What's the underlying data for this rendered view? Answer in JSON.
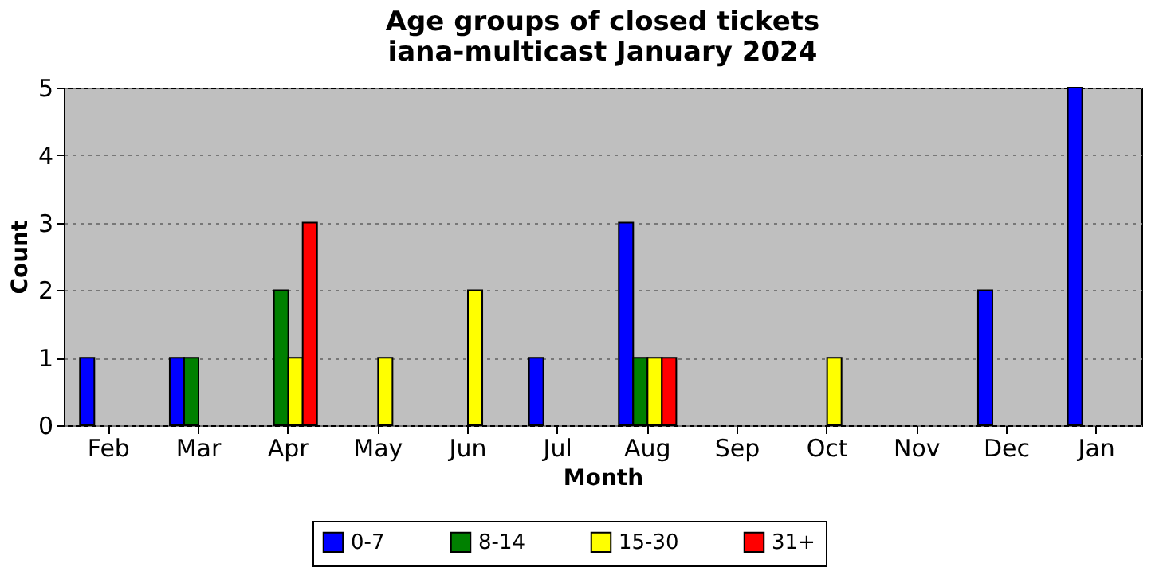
{
  "chart_data": {
    "type": "bar",
    "title": "Age groups of closed tickets",
    "subtitle": "iana-multicast January 2024",
    "xlabel": "Month",
    "ylabel": "Count",
    "categories": [
      "Feb",
      "Mar",
      "Apr",
      "May",
      "Jun",
      "Jul",
      "Aug",
      "Sep",
      "Oct",
      "Nov",
      "Dec",
      "Jan"
    ],
    "series": [
      {
        "name": "0-7",
        "color": "#0000ff",
        "values": [
          1,
          1,
          0,
          0,
          0,
          1,
          3,
          0,
          0,
          0,
          2,
          5
        ]
      },
      {
        "name": "8-14",
        "color": "#008000",
        "values": [
          0,
          1,
          2,
          0,
          0,
          0,
          1,
          0,
          0,
          0,
          0,
          0
        ]
      },
      {
        "name": "15-30",
        "color": "#ffff00",
        "values": [
          0,
          0,
          1,
          1,
          2,
          0,
          1,
          0,
          1,
          0,
          0,
          0
        ]
      },
      {
        "name": "31+",
        "color": "#ff0000",
        "values": [
          0,
          0,
          3,
          0,
          0,
          0,
          1,
          0,
          0,
          0,
          0,
          0
        ]
      }
    ],
    "ylim": [
      0,
      5
    ],
    "yticks": [
      0,
      1,
      2,
      3,
      4,
      5
    ],
    "grid": "y",
    "legend": "bottom"
  }
}
